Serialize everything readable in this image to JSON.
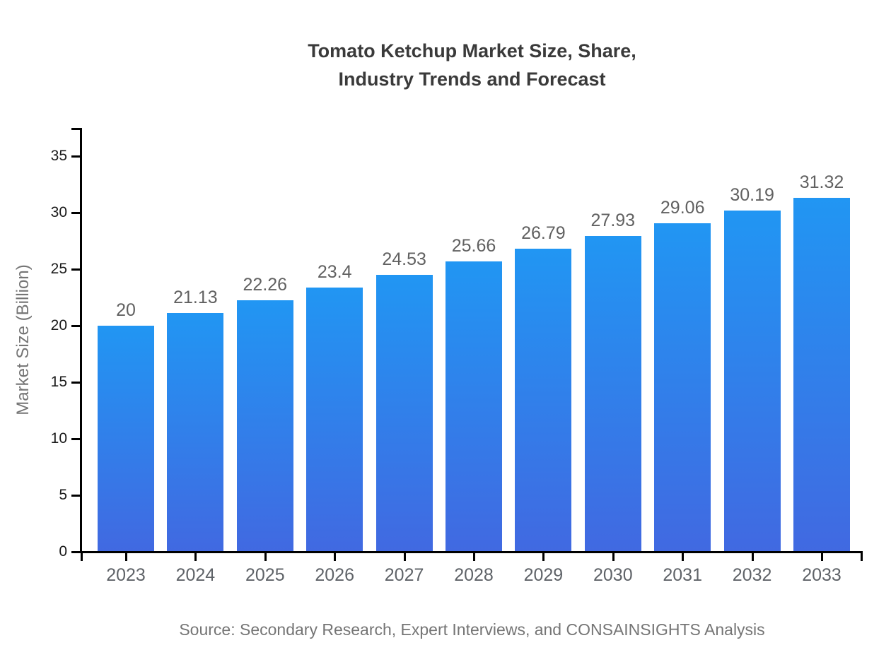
{
  "page": {
    "background": "#ffffff"
  },
  "chart_data": {
    "type": "bar",
    "title": "Tomato Ketchup Market Size, Share, Industry Trends and Forecast",
    "title_lines": [
      "Tomato Ketchup Market Size, Share,",
      "Industry Trends and Forecast"
    ],
    "xlabel": "",
    "ylabel": "Market Size (Billion)",
    "categories": [
      "2023",
      "2024",
      "2025",
      "2026",
      "2027",
      "2028",
      "2029",
      "2030",
      "2031",
      "2032",
      "2033"
    ],
    "values": [
      20,
      21.13,
      22.26,
      23.4,
      24.53,
      25.66,
      26.79,
      27.93,
      29.06,
      30.19,
      31.32
    ],
    "value_labels": [
      "20",
      "21.13",
      "22.26",
      "23.4",
      "24.53",
      "25.66",
      "26.79",
      "27.93",
      "29.06",
      "30.19",
      "31.32"
    ],
    "yticks": [
      0,
      5,
      10,
      15,
      20,
      25,
      30,
      35
    ],
    "ylim": [
      0,
      37.5
    ],
    "grid": false,
    "legend": "none",
    "source_note": "Source: Secondary Research, Expert Interviews, and CONSAINSIGHTS Analysis",
    "colors": {
      "bar_gradient_top": "#2196f3",
      "bar_gradient_bottom": "#4169e1",
      "axis_line": "#000000",
      "title_text": "#3a3a3a",
      "ytick_label": "#1a1a1a",
      "xtick_label": "#5f6368",
      "value_label": "#616161",
      "axis_title_text": "#757575",
      "source_text": "#757575"
    }
  }
}
